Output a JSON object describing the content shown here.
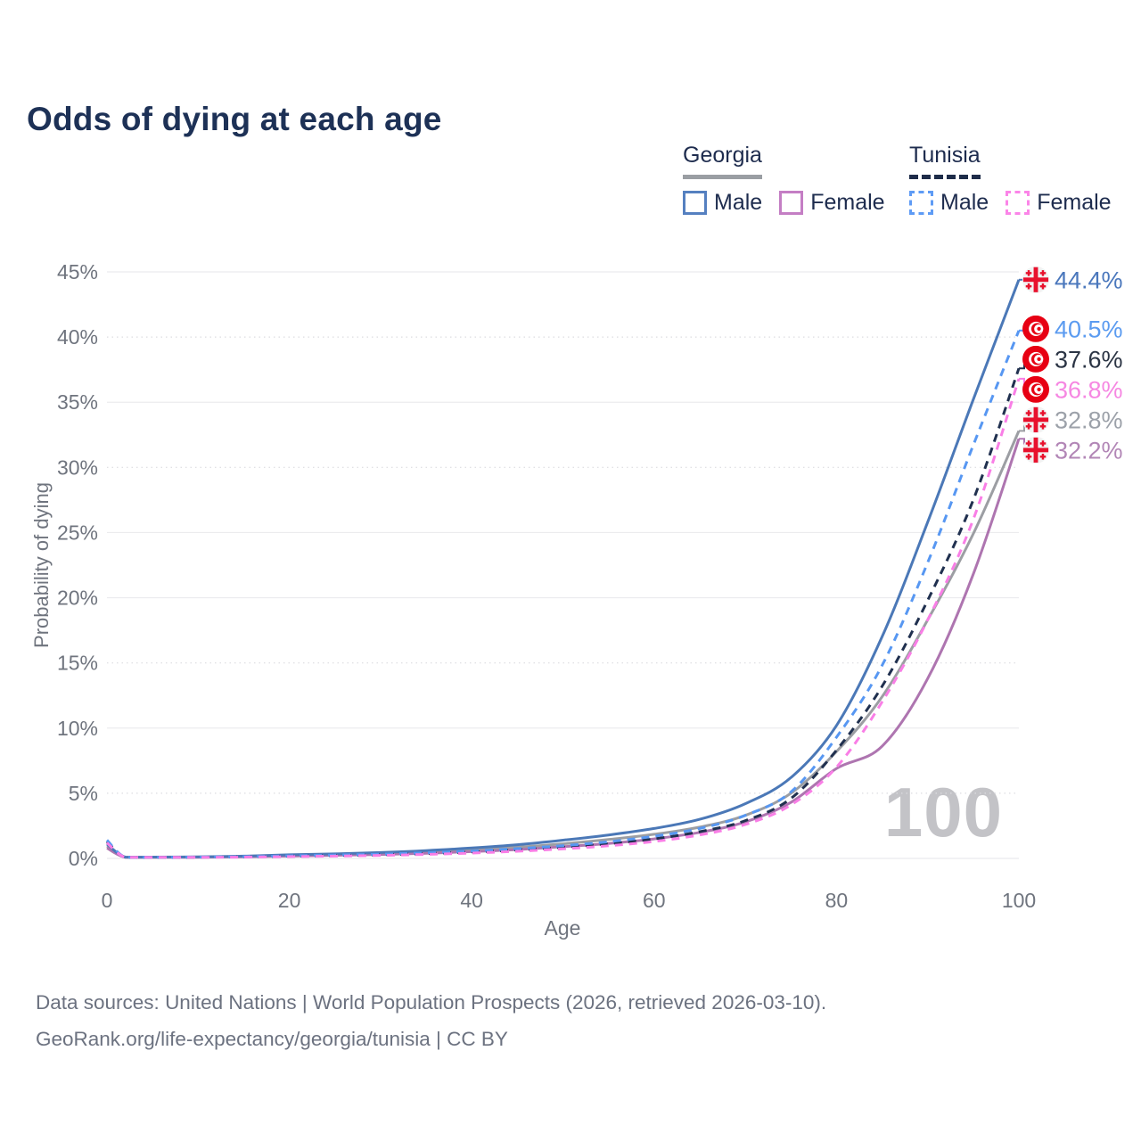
{
  "title": "Odds of dying at each age",
  "watermark": "100",
  "legend": {
    "georgia": {
      "title": "Georgia",
      "male": "Male",
      "female": "Female"
    },
    "tunisia": {
      "title": "Tunisia",
      "male": "Male",
      "female": "Female"
    }
  },
  "footer": {
    "line1": "Data sources: United Nations | World Population Prospects (2026, retrieved 2026-03-10).",
    "line2": "GeoRank.org/life-expectancy/georgia/tunisia | CC BY"
  },
  "chart_data": {
    "type": "line",
    "title": "Odds of dying at each age",
    "xlabel": "Age",
    "ylabel": "Probability of dying",
    "xlim": [
      0,
      100
    ],
    "ylim": [
      0,
      45
    ],
    "xticks": [
      0,
      20,
      40,
      60,
      80,
      100
    ],
    "yticks": [
      0,
      5,
      10,
      15,
      20,
      25,
      30,
      35,
      40,
      45
    ],
    "grid": "horizontal",
    "legend_position": "top-right",
    "x": [
      0,
      2,
      5,
      10,
      15,
      20,
      25,
      30,
      35,
      40,
      45,
      50,
      55,
      60,
      65,
      70,
      75,
      80,
      85,
      90,
      95,
      100
    ],
    "series": [
      {
        "id": "georgia-male",
        "name": "Georgia Male",
        "country": "Georgia",
        "sex": "Male",
        "flag": "georgia",
        "style": "solid",
        "color": "#4b78b7",
        "label_color": "#4a77bc",
        "end_label": "44.4%",
        "end_value": 44.4,
        "values": [
          1.1,
          0.1,
          0.1,
          0.12,
          0.18,
          0.28,
          0.35,
          0.45,
          0.6,
          0.8,
          1.05,
          1.4,
          1.8,
          2.3,
          3.0,
          4.2,
          6.2,
          10.2,
          17.0,
          25.8,
          35.2,
          44.4
        ]
      },
      {
        "id": "tunisia-male",
        "name": "Tunisia Male",
        "country": "Tunisia",
        "sex": "Male",
        "flag": "tunisia",
        "style": "dashed",
        "color": "#5797f2",
        "label_color": "#5b9bf0",
        "end_label": "40.5%",
        "end_value": 40.5,
        "values": [
          1.4,
          0.09,
          0.08,
          0.1,
          0.14,
          0.2,
          0.26,
          0.33,
          0.43,
          0.57,
          0.75,
          0.98,
          1.28,
          1.7,
          2.3,
          3.3,
          5.1,
          9.3,
          14.8,
          22.7,
          31.7,
          40.5
        ]
      },
      {
        "id": "tunisia-total",
        "name": "Tunisia",
        "country": "Tunisia",
        "sex": "Both sexes",
        "flag": "tunisia",
        "style": "dashed",
        "color": "#20304f",
        "label_color": "#2b3444",
        "end_label": "37.6%",
        "end_value": 37.6,
        "values": [
          1.3,
          0.08,
          0.07,
          0.09,
          0.12,
          0.17,
          0.22,
          0.28,
          0.37,
          0.49,
          0.65,
          0.86,
          1.12,
          1.5,
          2.05,
          2.9,
          4.6,
          8.3,
          13.2,
          19.8,
          27.5,
          37.6
        ]
      },
      {
        "id": "tunisia-female",
        "name": "Tunisia Female",
        "country": "Tunisia",
        "sex": "Female",
        "flag": "tunisia",
        "style": "dashed",
        "color": "#f97ee6",
        "label_color": "#f687e2",
        "end_label": "36.8%",
        "end_value": 36.8,
        "values": [
          1.2,
          0.07,
          0.06,
          0.08,
          0.1,
          0.14,
          0.18,
          0.23,
          0.31,
          0.41,
          0.55,
          0.73,
          0.97,
          1.3,
          1.8,
          2.6,
          4.1,
          7.0,
          12.0,
          18.3,
          26.0,
          36.8
        ]
      },
      {
        "id": "georgia-total",
        "name": "Georgia",
        "country": "Georgia",
        "sex": "Both sexes",
        "flag": "georgia",
        "style": "solid",
        "color": "#9c9ea3",
        "label_color": "#9ca1a9",
        "end_label": "32.8%",
        "end_value": 32.8,
        "values": [
          0.95,
          0.09,
          0.09,
          0.11,
          0.16,
          0.24,
          0.3,
          0.38,
          0.5,
          0.66,
          0.86,
          1.12,
          1.45,
          1.85,
          2.4,
          3.3,
          5.0,
          8.2,
          12.4,
          18.3,
          24.9,
          32.8
        ]
      },
      {
        "id": "georgia-female",
        "name": "Georgia Female",
        "country": "Georgia",
        "sex": "Female",
        "flag": "georgia",
        "style": "solid",
        "color": "#ae75b0",
        "label_color": "#b286b6",
        "end_label": "32.2%",
        "end_value": 32.2,
        "values": [
          0.8,
          0.07,
          0.07,
          0.09,
          0.12,
          0.18,
          0.24,
          0.3,
          0.4,
          0.52,
          0.68,
          0.9,
          1.15,
          1.5,
          2.0,
          2.8,
          4.3,
          6.9,
          8.6,
          13.8,
          21.8,
          32.2
        ]
      }
    ]
  }
}
